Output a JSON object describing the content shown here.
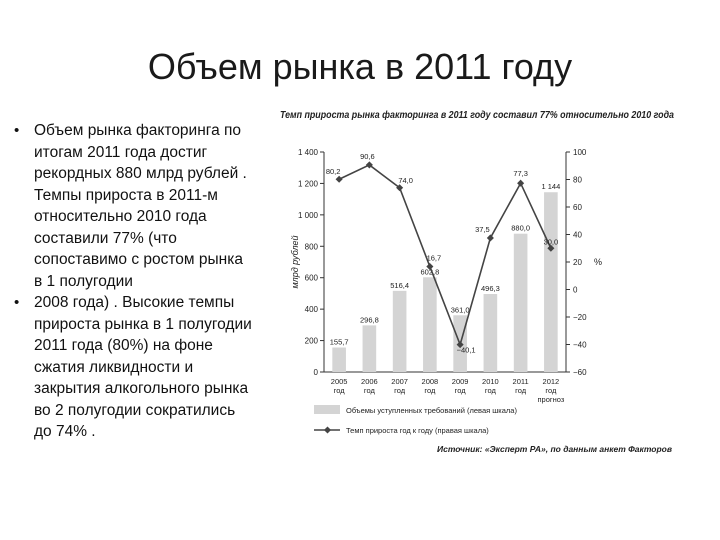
{
  "title": "Объем рынка в 2011 году",
  "bullets": [
    "Объем рынка факторинга по итогам 2011 года достиг рекордных 880 млрд рублей . Темпы прироста в 2011-м относительно 2010 года составили 77% (что сопоставимо с ростом рынка в 1 полугодии",
    "2008 года) . Высокие темпы прироста рынка в 1 полугодии 2011 года (80%) на фоне сжатия ликвидности и закрытия алкогольного рынка во 2 полугодии сократились до 74% ."
  ],
  "colors": {
    "bar": "#d4d4d4",
    "line": "#444444",
    "axis": "#333333"
  },
  "chart_data": {
    "type": "bar",
    "title": "Темп прироста рынка факторинга в 2011 году составил 77% относительно 2010 года",
    "categories": [
      "2005\nгод",
      "2006\nгод",
      "2007\nгод",
      "2008\nгод",
      "2009\nгод",
      "2010\nгод",
      "2011\nгод",
      "2012\nгод"
    ],
    "category_lines": [
      [
        "2005",
        "год"
      ],
      [
        "2006",
        "год"
      ],
      [
        "2007",
        "год"
      ],
      [
        "2008",
        "год"
      ],
      [
        "2009",
        "год"
      ],
      [
        "2010",
        "год"
      ],
      [
        "2011",
        "год"
      ],
      [
        "2012",
        "год"
      ]
    ],
    "ylabel_left": "млрд рублей",
    "ylabel_right": "%",
    "left_ticks": [
      "1 400",
      "1 200",
      "1 000",
      "800",
      "600",
      "400",
      "200",
      "0"
    ],
    "left_ylim": [
      0,
      1400
    ],
    "right_ticks": [
      "100",
      "80",
      "60",
      "40",
      "20",
      "0",
      "−20",
      "−40",
      "−60"
    ],
    "right_ylim": [
      -60,
      100
    ],
    "series": [
      {
        "name": "Объемы уступленных требований (левая шкала)",
        "kind": "bar",
        "values": [
          155.7,
          296.8,
          516.4,
          602.8,
          361.0,
          496.3,
          880.0,
          1144
        ],
        "labels": [
          "155,7",
          "296,8",
          "516,4",
          "602,8",
          "361,0",
          "496,3",
          "880,0",
          "1 144"
        ]
      },
      {
        "name": "Темп прироста год к году (правая шкала)",
        "kind": "line",
        "values": [
          80.2,
          90.6,
          74.0,
          16.7,
          -40.1,
          37.5,
          77.3,
          30.0
        ],
        "labels": [
          "80,2",
          "90,6",
          "74,0",
          "16,7",
          "−40,1",
          "37,5",
          "77,3",
          "30,0"
        ]
      }
    ],
    "annotations": [
      "прогноз"
    ],
    "source": "Источник: «Эксперт РА», по данным анкет Факторов"
  }
}
